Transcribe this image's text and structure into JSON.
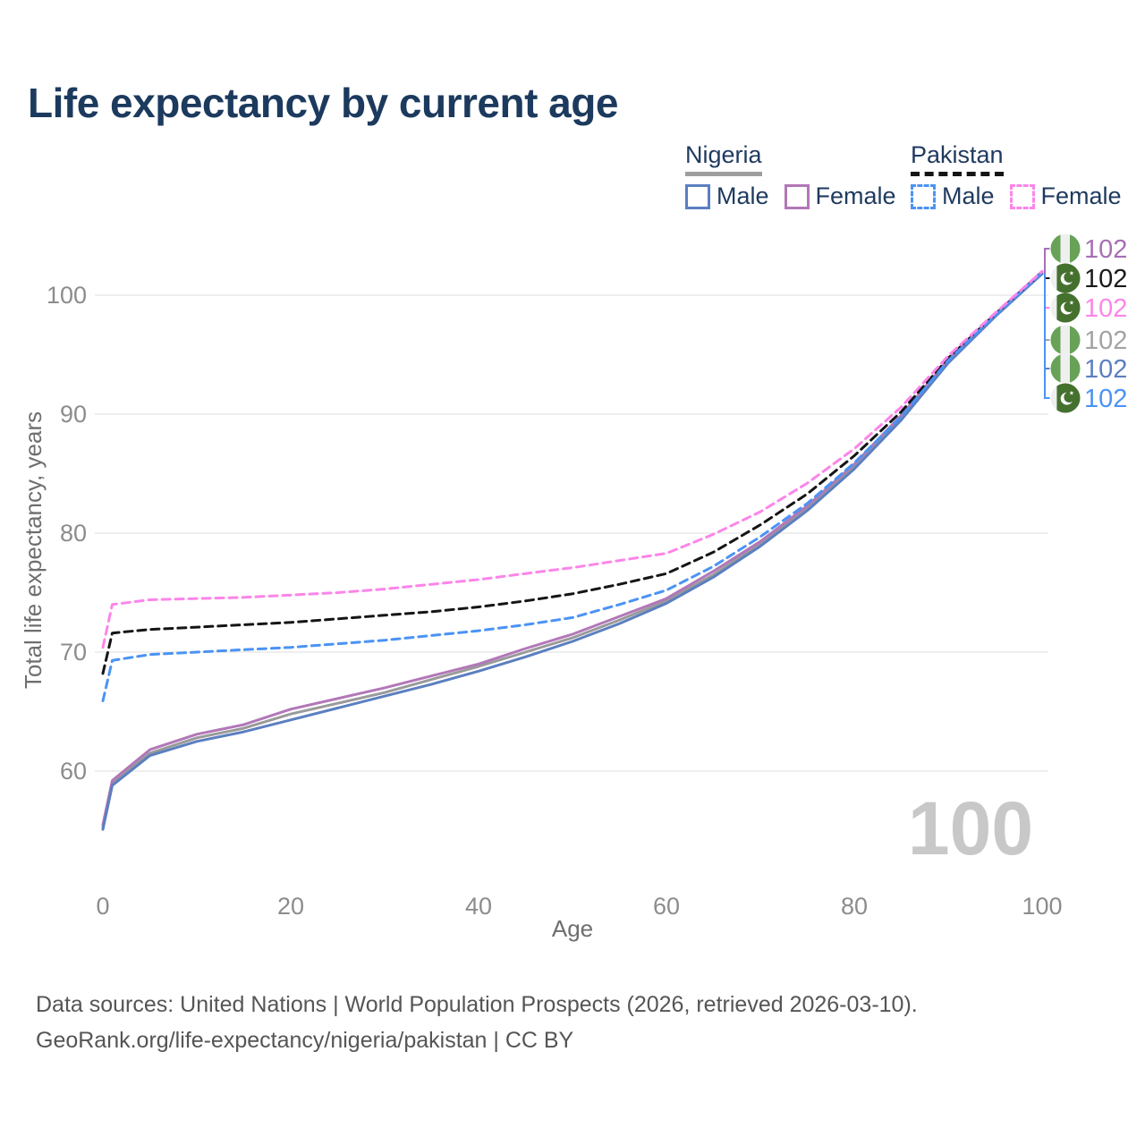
{
  "title": "Life expectancy by current age",
  "watermark_age": "100",
  "legend": {
    "groups": [
      {
        "country": "Nigeria",
        "line_style": "solid",
        "underline_color": "#9e9e9e",
        "items": [
          {
            "label": "Male",
            "color": "#5b7fc0"
          },
          {
            "label": "Female",
            "color": "#b277b8"
          }
        ]
      },
      {
        "country": "Pakistan",
        "line_style": "dashed",
        "underline_color": "#151515",
        "items": [
          {
            "label": "Male",
            "color": "#4b93f5"
          },
          {
            "label": "Female",
            "color": "#fc85e9"
          }
        ]
      }
    ]
  },
  "end_labels": [
    {
      "series": "Nigeria Female",
      "flag": "nigeria",
      "value": "102",
      "color": "#a76fb5"
    },
    {
      "series": "Pakistan",
      "flag": "pakistan",
      "value": "102",
      "color": "#1a1a1a"
    },
    {
      "series": "Pakistan Female",
      "flag": "pakistan",
      "value": "102",
      "color": "#fc85e9"
    },
    {
      "series": "Nigeria",
      "flag": "nigeria",
      "value": "102",
      "color": "#a3a3a3"
    },
    {
      "series": "Nigeria Male",
      "flag": "nigeria",
      "value": "102",
      "color": "#5b7fc0"
    },
    {
      "series": "Pakistan Male",
      "flag": "pakistan",
      "value": "102",
      "color": "#4b93f5"
    }
  ],
  "flag_colors": {
    "nigeria_green": "#67a257",
    "pakistan_green": "#45712e",
    "flag_white": "#efefef"
  },
  "footer": {
    "line1": "Data sources: United Nations | World Population Prospects (2026, retrieved 2026-03-10).",
    "line2": "GeoRank.org/life-expectancy/nigeria/pakistan | CC BY"
  },
  "chart_data": {
    "type": "line",
    "title": "Life expectancy by current age",
    "xlabel": "Age",
    "ylabel": "Total life expectancy, years",
    "x_ticks": [
      0,
      20,
      40,
      60,
      80,
      100
    ],
    "y_ticks": [
      60,
      70,
      80,
      90,
      100
    ],
    "xlim": [
      0,
      100
    ],
    "ylim": [
      53,
      103
    ],
    "grid": "horizontal",
    "legend_position": "top-right",
    "x": [
      0,
      1,
      5,
      10,
      15,
      20,
      25,
      30,
      35,
      40,
      45,
      50,
      55,
      60,
      65,
      70,
      75,
      80,
      85,
      90,
      95,
      100
    ],
    "series": [
      {
        "name": "Nigeria",
        "sex": "both",
        "color": "#9a9a9a",
        "dashed": false,
        "values": [
          55.3,
          59.0,
          61.5,
          62.8,
          63.6,
          64.8,
          65.7,
          66.6,
          67.7,
          68.8,
          70.0,
          71.2,
          72.7,
          74.3,
          76.5,
          79.1,
          82.1,
          85.6,
          89.7,
          94.4,
          98.3,
          101.9
        ]
      },
      {
        "name": "Nigeria Female",
        "sex": "female",
        "color": "#b277b8",
        "dashed": false,
        "values": [
          55.5,
          59.2,
          61.8,
          63.1,
          63.9,
          65.2,
          66.1,
          67.0,
          68.0,
          69.0,
          70.3,
          71.5,
          73.0,
          74.5,
          76.8,
          79.3,
          82.3,
          85.8,
          89.9,
          94.6,
          98.4,
          102.0
        ]
      },
      {
        "name": "Nigeria Male",
        "sex": "male",
        "color": "#5b7fc0",
        "dashed": false,
        "values": [
          55.1,
          58.8,
          61.3,
          62.5,
          63.3,
          64.3,
          65.3,
          66.3,
          67.3,
          68.4,
          69.6,
          70.9,
          72.4,
          74.1,
          76.3,
          78.9,
          81.9,
          85.4,
          89.5,
          94.3,
          98.2,
          101.8
        ]
      },
      {
        "name": "Pakistan",
        "sex": "both",
        "color": "#151515",
        "dashed": true,
        "values": [
          68.2,
          71.6,
          71.9,
          72.1,
          72.3,
          72.5,
          72.8,
          73.1,
          73.4,
          73.8,
          74.3,
          74.9,
          75.7,
          76.6,
          78.4,
          80.7,
          83.3,
          86.5,
          90.2,
          94.7,
          98.4,
          101.9
        ]
      },
      {
        "name": "Pakistan Male",
        "sex": "male",
        "color": "#4b93f5",
        "dashed": true,
        "values": [
          65.9,
          69.3,
          69.8,
          70.0,
          70.2,
          70.4,
          70.7,
          71.0,
          71.4,
          71.8,
          72.3,
          72.9,
          74.0,
          75.2,
          77.2,
          79.7,
          82.5,
          85.9,
          89.8,
          94.5,
          98.3,
          101.9
        ]
      },
      {
        "name": "Pakistan Female",
        "sex": "female",
        "color": "#fc85e9",
        "dashed": true,
        "values": [
          70.4,
          74.0,
          74.4,
          74.5,
          74.6,
          74.8,
          75.0,
          75.3,
          75.7,
          76.1,
          76.6,
          77.1,
          77.7,
          78.3,
          79.9,
          81.8,
          84.2,
          87.1,
          90.6,
          94.9,
          98.5,
          102.0
        ]
      }
    ]
  }
}
